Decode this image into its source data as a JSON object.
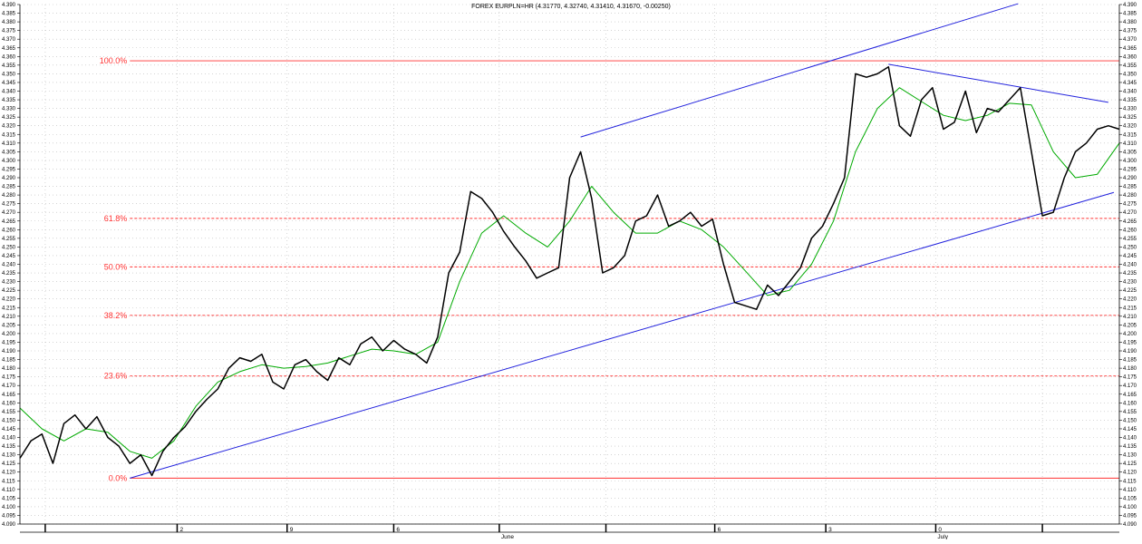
{
  "chart_data": {
    "type": "line",
    "title": "FOREX EURPLN=HR (4.31770, 4.32740, 4.31410, 4.31670, -0.00250)",
    "ylim": [
      4.09,
      4.39
    ],
    "y_ticks": [
      4.09,
      4.095,
      4.1,
      4.105,
      4.11,
      4.115,
      4.12,
      4.125,
      4.13,
      4.135,
      4.14,
      4.145,
      4.15,
      4.155,
      4.16,
      4.165,
      4.17,
      4.175,
      4.18,
      4.185,
      4.19,
      4.195,
      4.2,
      4.205,
      4.21,
      4.215,
      4.22,
      4.225,
      4.23,
      4.235,
      4.24,
      4.245,
      4.25,
      4.255,
      4.26,
      4.265,
      4.27,
      4.275,
      4.28,
      4.285,
      4.29,
      4.295,
      4.3,
      4.305,
      4.31,
      4.315,
      4.32,
      4.325,
      4.33,
      4.335,
      4.34,
      4.345,
      4.35,
      4.355,
      4.36,
      4.365,
      4.37,
      4.375,
      4.38,
      4.385,
      4.39
    ],
    "x_tick_labels": [
      {
        "label": "",
        "t": 0.023
      },
      {
        "label": "2",
        "t": 0.143
      },
      {
        "label": "9",
        "t": 0.243
      },
      {
        "label": "6",
        "t": 0.34
      },
      {
        "label": "",
        "t": 0.436
      },
      {
        "label": "",
        "t": 0.533
      },
      {
        "label": "6",
        "t": 0.632
      },
      {
        "label": "3",
        "t": 0.733
      },
      {
        "label": "0",
        "t": 0.833
      },
      {
        "label": "",
        "t": 0.93
      }
    ],
    "x_month_labels": [
      {
        "label": "June",
        "t": 0.436
      },
      {
        "label": "July",
        "t": 0.833
      }
    ],
    "fibonacci": [
      {
        "label": "100.0%",
        "value": 4.3575,
        "style": "solid"
      },
      {
        "label": "61.8%",
        "value": 4.2665,
        "style": "dashed"
      },
      {
        "label": "50.0%",
        "value": 4.2385,
        "style": "dashed"
      },
      {
        "label": "38.2%",
        "value": 4.2105,
        "style": "dashed"
      },
      {
        "label": "23.6%",
        "value": 4.1755,
        "style": "dashed"
      },
      {
        "label": "0.0%",
        "value": 4.1165,
        "style": "solid"
      }
    ],
    "trendlines": [
      {
        "t": [
          0.1,
          0.995
        ],
        "y": [
          4.1165,
          4.2815
        ]
      },
      {
        "t": [
          0.51,
          0.908
        ],
        "y": [
          4.3135,
          4.3905
        ]
      },
      {
        "t": [
          0.79,
          0.99
        ],
        "y": [
          4.3555,
          4.3335
        ]
      }
    ],
    "series": [
      {
        "color": "#000000",
        "t": [
          0.0,
          0.01,
          0.02,
          0.03,
          0.04,
          0.05,
          0.06,
          0.07,
          0.08,
          0.09,
          0.1,
          0.11,
          0.12,
          0.13,
          0.14,
          0.15,
          0.16,
          0.17,
          0.18,
          0.19,
          0.2,
          0.21,
          0.22,
          0.23,
          0.24,
          0.25,
          0.26,
          0.27,
          0.28,
          0.29,
          0.3,
          0.31,
          0.32,
          0.33,
          0.34,
          0.35,
          0.36,
          0.37,
          0.38,
          0.39,
          0.4,
          0.41,
          0.42,
          0.43,
          0.44,
          0.45,
          0.46,
          0.47,
          0.48,
          0.49,
          0.5,
          0.51,
          0.52,
          0.53,
          0.54,
          0.55,
          0.56,
          0.57,
          0.58,
          0.59,
          0.6,
          0.61,
          0.62,
          0.63,
          0.64,
          0.65,
          0.66,
          0.67,
          0.68,
          0.69,
          0.7,
          0.71,
          0.72,
          0.73,
          0.74,
          0.75,
          0.76,
          0.77,
          0.78,
          0.79,
          0.8,
          0.81,
          0.82,
          0.83,
          0.84,
          0.85,
          0.86,
          0.87,
          0.88,
          0.89,
          0.9,
          0.91,
          0.92,
          0.93,
          0.94,
          0.95,
          0.96,
          0.97,
          0.98,
          0.99,
          1.0
        ],
        "y": [
          4.128,
          4.138,
          4.142,
          4.125,
          4.148,
          4.153,
          4.145,
          4.152,
          4.14,
          4.135,
          4.125,
          4.13,
          4.118,
          4.132,
          4.14,
          4.146,
          4.155,
          4.162,
          4.168,
          4.18,
          4.186,
          4.184,
          4.188,
          4.172,
          4.168,
          4.182,
          4.185,
          4.178,
          4.173,
          4.186,
          4.182,
          4.194,
          4.198,
          4.19,
          4.196,
          4.191,
          4.188,
          4.183,
          4.198,
          4.235,
          4.247,
          4.282,
          4.278,
          4.27,
          4.259,
          4.25,
          4.242,
          4.232,
          4.235,
          4.238,
          4.29,
          4.305,
          4.278,
          4.235,
          4.238,
          4.245,
          4.265,
          4.268,
          4.28,
          4.262,
          4.265,
          4.27,
          4.262,
          4.266,
          4.24,
          4.218,
          4.216,
          4.214,
          4.228,
          4.222,
          4.23,
          4.238,
          4.255,
          4.262,
          4.275,
          4.29,
          4.35,
          4.348,
          4.35,
          4.354,
          4.32,
          4.314,
          4.335,
          4.342,
          4.318,
          4.322,
          4.34,
          4.316,
          4.33,
          4.328,
          4.335,
          4.342,
          4.305,
          4.268,
          4.27,
          4.29,
          4.305,
          4.31,
          4.318,
          4.32,
          4.318
        ]
      },
      {
        "color": "#00aa00",
        "t": [
          0.0,
          0.02,
          0.04,
          0.06,
          0.08,
          0.1,
          0.12,
          0.14,
          0.16,
          0.18,
          0.2,
          0.22,
          0.24,
          0.26,
          0.28,
          0.3,
          0.32,
          0.34,
          0.36,
          0.38,
          0.4,
          0.42,
          0.44,
          0.46,
          0.48,
          0.5,
          0.52,
          0.54,
          0.56,
          0.58,
          0.6,
          0.62,
          0.64,
          0.66,
          0.68,
          0.7,
          0.72,
          0.74,
          0.76,
          0.78,
          0.8,
          0.82,
          0.84,
          0.86,
          0.88,
          0.9,
          0.92,
          0.94,
          0.96,
          0.98,
          1.0
        ],
        "y": [
          4.157,
          4.145,
          4.138,
          4.145,
          4.143,
          4.132,
          4.128,
          4.138,
          4.158,
          4.172,
          4.178,
          4.182,
          4.18,
          4.181,
          4.183,
          4.187,
          4.191,
          4.19,
          4.188,
          4.195,
          4.23,
          4.258,
          4.268,
          4.258,
          4.25,
          4.265,
          4.285,
          4.27,
          4.258,
          4.258,
          4.265,
          4.26,
          4.25,
          4.236,
          4.222,
          4.225,
          4.24,
          4.265,
          4.305,
          4.33,
          4.342,
          4.334,
          4.326,
          4.323,
          4.326,
          4.333,
          4.332,
          4.305,
          4.29,
          4.292,
          4.31
        ]
      }
    ]
  }
}
